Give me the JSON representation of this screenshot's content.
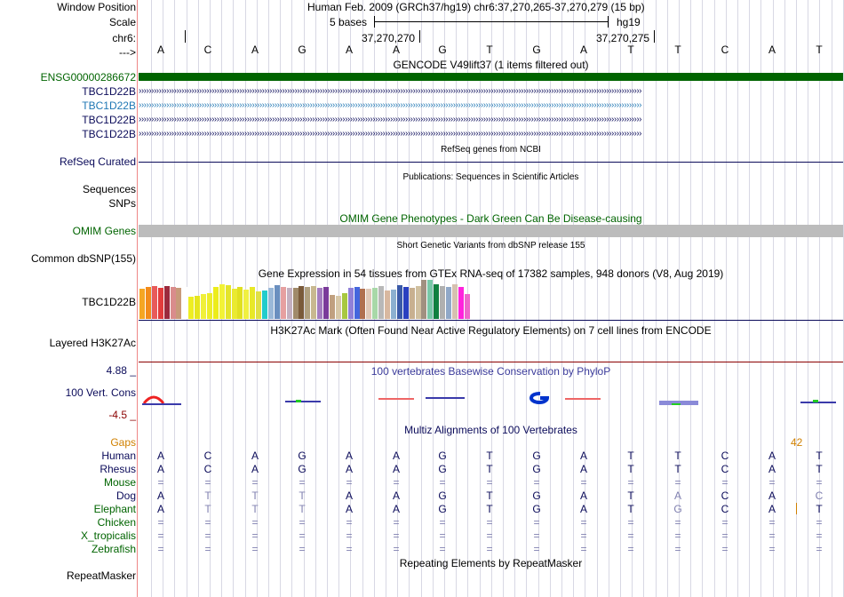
{
  "header": {
    "window_position_label": "Window Position",
    "scale_label": "Scale",
    "chrom_label": "chr6:",
    "arrow_label": "--->",
    "assembly_text": "Human Feb. 2009 (GRCh37/hg19)   chr6:37,270,265-37,270,279 (15 bp)",
    "scale_text": "5 bases",
    "db_text": "hg19",
    "coord_1": "37,270,270",
    "coord_2": "37,270,275"
  },
  "reference_bases": [
    "A",
    "C",
    "A",
    "G",
    "A",
    "A",
    "G",
    "T",
    "G",
    "A",
    "T",
    "T",
    "C",
    "A",
    "T"
  ],
  "gencode": {
    "title": "GENCODE V49lift37 (1 items filtered out)",
    "gene_label": "ENSG00000286672",
    "transcripts": [
      "TBC1D22B",
      "TBC1D22B",
      "TBC1D22B",
      "TBC1D22B"
    ],
    "colors": {
      "gene": "#006400",
      "transcript": "#0b0b5a",
      "highlight": "#1f77b4"
    }
  },
  "refseq": {
    "title": "RefSeq genes from NCBI",
    "label": "RefSeq Curated"
  },
  "publications": {
    "title": "Publications: Sequences in Scientific Articles",
    "label_sequences": "Sequences",
    "label_snps": "SNPs"
  },
  "omim": {
    "title": "OMIM Gene Phenotypes - Dark Green Can Be Disease-causing",
    "label": "OMIM Genes"
  },
  "dbsnp": {
    "title": "Short Genetic Variants from dbSNP release 155",
    "label": "Common dbSNP(155)"
  },
  "gtex": {
    "title": "Gene Expression in 54 tissues from GTEx RNA-seq of 17382 samples, 948 donors (V8, Aug 2019)",
    "label": "TBC1D22B",
    "bar_values": [
      0.78,
      0.82,
      0.84,
      0.8,
      0.83,
      0.82,
      0.8,
      0.82,
      0.56,
      0.6,
      0.64,
      0.66,
      0.82,
      0.88,
      0.86,
      0.78,
      0.82,
      0.76,
      0.82,
      0.7,
      0.72,
      0.8,
      0.86,
      0.82,
      0.8,
      0.8,
      0.84,
      0.82,
      0.84,
      0.8,
      0.82,
      0.62,
      0.6,
      0.66,
      0.8,
      0.82,
      0.78,
      0.78,
      0.8,
      0.84,
      0.72,
      0.76,
      0.86,
      0.82,
      0.8,
      0.84,
      1.0,
      1.0,
      0.88,
      0.84,
      0.82,
      0.88,
      0.82,
      0.64
    ],
    "bar_colors": [
      "#f5a623",
      "#f38b1a",
      "#e85a5a",
      "#e23c3c",
      "#9b2a3d",
      "#d98c8c",
      "#c89a7a",
      "#ffffff",
      "#eeee22",
      "#e6e61e",
      "#f0f03a",
      "#eded2a",
      "#ecec1a",
      "#f2f236",
      "#e4e42a",
      "#eaea30",
      "#e0e020",
      "#f0f040",
      "#e8e828",
      "#e0e045",
      "#22cccc",
      "#9ab8d8",
      "#6a8fbf",
      "#e6a0a0",
      "#c4b0c0",
      "#a08a6a",
      "#7a5a3a",
      "#b0a080",
      "#c8b890",
      "#a47cc0",
      "#7a3a9a",
      "#c0a080",
      "#d8c8a8",
      "#a8c840",
      "#9080d8",
      "#4466dd",
      "#b07050",
      "#e0c8b8",
      "#a8d8a8",
      "#b8b8b8",
      "#d8b8a0",
      "#8cb0d0",
      "#3a5aa8",
      "#2a40c0",
      "#c8b090",
      "#d0c0a0",
      "#a09080",
      "#78c8a8",
      "#108040",
      "#b0b0b0",
      "#90a8c8",
      "#d6c0b0",
      "#ff22dd",
      "#ee66cc"
    ]
  },
  "h3k27ac": {
    "title": "H3K27Ac Mark (Often Found Near Active Regulatory Elements) on 7 cell lines from ENCODE",
    "label": "Layered H3K27Ac"
  },
  "conservation": {
    "title": "100 vertebrates Basewise Conservation by PhyloP",
    "label": "100 Vert. Cons",
    "max_label": "4.88 _",
    "min_label": "-4.5 _"
  },
  "multiz": {
    "title": "Multiz Alignments of 100 Vertebrates",
    "gaps_label": "Gaps",
    "gap_count": "42",
    "species": [
      {
        "name": "Human",
        "bases": [
          "A",
          "C",
          "A",
          "G",
          "A",
          "A",
          "G",
          "T",
          "G",
          "A",
          "T",
          "T",
          "C",
          "A",
          "T"
        ]
      },
      {
        "name": "Rhesus",
        "bases": [
          "A",
          "C",
          "A",
          "G",
          "A",
          "A",
          "G",
          "T",
          "G",
          "A",
          "T",
          "T",
          "C",
          "A",
          "T"
        ]
      },
      {
        "name": "Mouse",
        "bases": [
          "=",
          "=",
          "=",
          "=",
          "=",
          "=",
          "=",
          "=",
          "=",
          "=",
          "=",
          "=",
          "=",
          "=",
          "="
        ]
      },
      {
        "name": "Dog",
        "bases": [
          "A",
          "T",
          "T",
          "T",
          "A",
          "A",
          "G",
          "T",
          "G",
          "A",
          "T",
          "A",
          "C",
          "A",
          "C"
        ]
      },
      {
        "name": "Elephant",
        "bases": [
          "A",
          "T",
          "T",
          "T",
          "A",
          "A",
          "G",
          "T",
          "G",
          "A",
          "T",
          "G",
          "C",
          "A",
          "T"
        ]
      },
      {
        "name": "Chicken",
        "bases": [
          "=",
          "=",
          "=",
          "=",
          "=",
          "=",
          "=",
          "=",
          "=",
          "=",
          "=",
          "=",
          "=",
          "=",
          "="
        ]
      },
      {
        "name": "X_tropicalis",
        "bases": [
          "=",
          "=",
          "=",
          "=",
          "=",
          "=",
          "=",
          "=",
          "=",
          "=",
          "=",
          "=",
          "=",
          "=",
          "="
        ]
      },
      {
        "name": "Zebrafish",
        "bases": [
          "=",
          "=",
          "=",
          "=",
          "=",
          "=",
          "=",
          "=",
          "=",
          "=",
          "=",
          "=",
          "=",
          "=",
          "="
        ]
      }
    ]
  },
  "repeatmasker": {
    "title": "Repeating Elements by RepeatMasker",
    "label": "RepeatMasker"
  },
  "colors": {
    "label_blue": "#0b0b5a",
    "label_green": "#006400",
    "gaps_orange": "#d08000",
    "cons_red": "#8b0000"
  }
}
